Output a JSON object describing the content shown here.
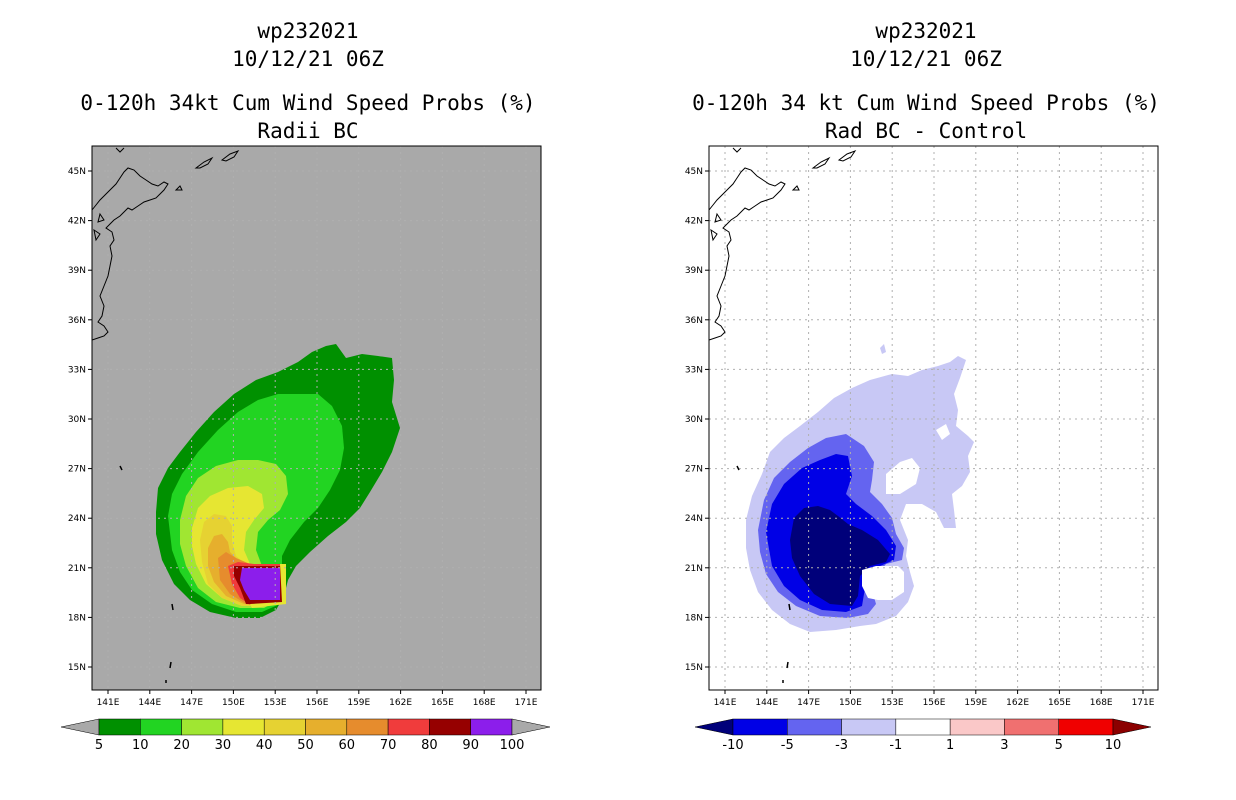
{
  "panels": {
    "left": {
      "storm_id": "wp232021",
      "datetime": "10/12/21 06Z",
      "title": "0-120h 34kt Cum Wind Speed Probs (%)",
      "subtitle": "Radii BC",
      "background_color": "#a9a9a9",
      "colorbar_labels": [
        "5",
        "10",
        "20",
        "30",
        "40",
        "50",
        "60",
        "70",
        "80",
        "90",
        "100"
      ],
      "colorbar_colors": [
        "#009000",
        "#22d422",
        "#a0e632",
        "#e6e632",
        "#e6d232",
        "#e6af2d",
        "#e68c2d",
        "#f03c3c",
        "#960000",
        "#8c1eeb"
      ],
      "colorbar_left_arrow": "#a9a9a9",
      "colorbar_right_arrow": "#a9a9a9"
    },
    "right": {
      "storm_id": "wp232021",
      "datetime": "10/12/21 06Z",
      "title": "0-120h 34 kt Cum Wind Speed Probs (%)",
      "subtitle": "Rad BC - Control",
      "background_color": "#ffffff",
      "colorbar_labels": [
        "-10",
        "-5",
        "-3",
        "-1",
        "1",
        "3",
        "5",
        "10"
      ],
      "colorbar_colors": [
        "#0000e6",
        "#6464f0",
        "#c8c8f5",
        "#ffffff",
        "#fac8c8",
        "#f07070",
        "#f00000"
      ],
      "colorbar_left_arrow": "#00007a",
      "colorbar_right_arrow": "#8b0000"
    }
  },
  "axes": {
    "lon_labels": [
      "141E",
      "144E",
      "147E",
      "150E",
      "153E",
      "156E",
      "159E",
      "162E",
      "165E",
      "168E",
      "171E"
    ],
    "lat_labels": [
      "45N",
      "42N",
      "39N",
      "36N",
      "33N",
      "30N",
      "27N",
      "24N",
      "21N",
      "18N",
      "15N"
    ]
  }
}
